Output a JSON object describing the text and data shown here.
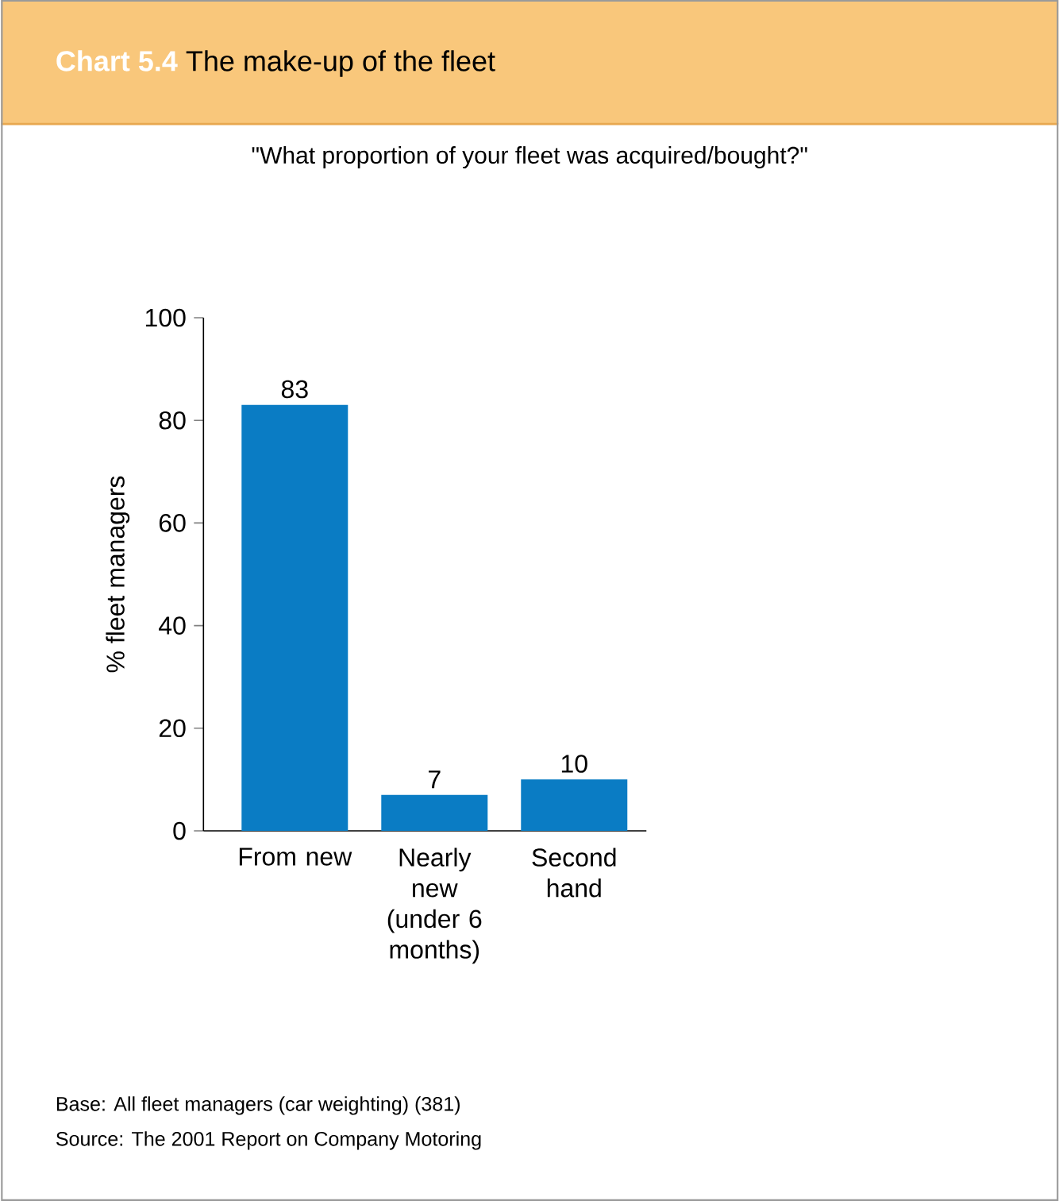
{
  "chart_data": {
    "type": "bar",
    "title": "**Chart 5.4** The make-up of the fleet",
    "subtitle": "\"What proportion of your fleet was acquired/bought?\"",
    "ylabel": "% fleet managers",
    "categories": [
      "From new",
      "Nearly new (under 6 months)",
      "Second hand"
    ],
    "values": [
      83,
      7,
      10
    ],
    "color": "#0a7cc4",
    "data_labels": true,
    "ylim": [
      0,
      100
    ],
    "yticks": [
      0,
      20,
      40,
      60,
      80,
      100
    ],
    "grid": false,
    "annotations": [
      "Base: All fleet managers (car weighting) (381)",
      "Source: The 2001 Report on Company Motoring"
    ]
  }
}
